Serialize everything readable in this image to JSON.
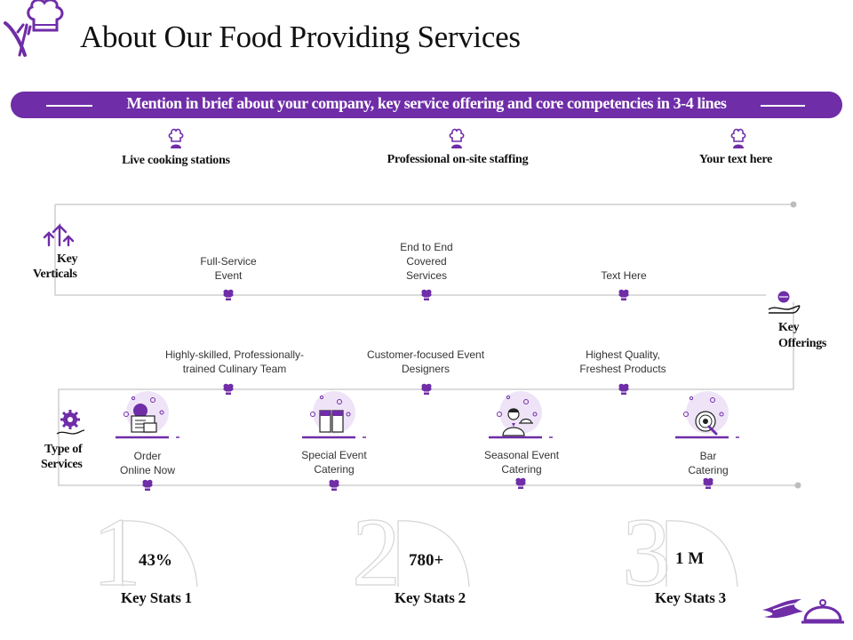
{
  "title": "About Our Food Providing Services",
  "banner": "Mention in brief about your company, key service offering and core competencies in 3-4 lines",
  "top_items": [
    "Live cooking stations",
    "Professional on-site staffing",
    "Your text here"
  ],
  "key_verticals": {
    "label_line1": "Key",
    "label_line2": "Verticals"
  },
  "verticals": [
    {
      "line1": "Full-Service",
      "line2": "Event"
    },
    {
      "line1": "End to End",
      "line2": "Covered",
      "line3": "Services"
    },
    {
      "line1": "Text Here"
    }
  ],
  "key_offerings": {
    "label_line1": "Key",
    "label_line2": "Offerings"
  },
  "offerings": [
    {
      "line1": "Highly-skilled, Professionally-",
      "line2": "trained Culinary Team"
    },
    {
      "line1": "Customer-focused Event",
      "line2": "Designers"
    },
    {
      "line1": "Highest Quality,",
      "line2": "Freshest Products"
    }
  ],
  "type_of_services": {
    "label_line1": "Type of",
    "label_line2": "Services"
  },
  "services": [
    {
      "line1": "Order",
      "line2": "Online Now",
      "icon": "laptop-order-icon"
    },
    {
      "line1": "Special Event",
      "line2": "Catering",
      "icon": "drinks-icon"
    },
    {
      "line1": "Seasonal Event",
      "line2": "Catering",
      "icon": "waiter-icon"
    },
    {
      "line1": "Bar",
      "line2": "Catering",
      "icon": "bar-target-icon"
    }
  ],
  "stats": [
    {
      "number": "1",
      "value": "43%",
      "label": "Key Stats 1"
    },
    {
      "number": "2",
      "value": "780+",
      "label": "Key Stats 2"
    },
    {
      "number": "3",
      "value": "1 M",
      "label": "Key Stats 3"
    }
  ],
  "colors": {
    "accent": "#6f2da8",
    "line": "#cfcfcf",
    "light_accent": "#efe4f7"
  }
}
